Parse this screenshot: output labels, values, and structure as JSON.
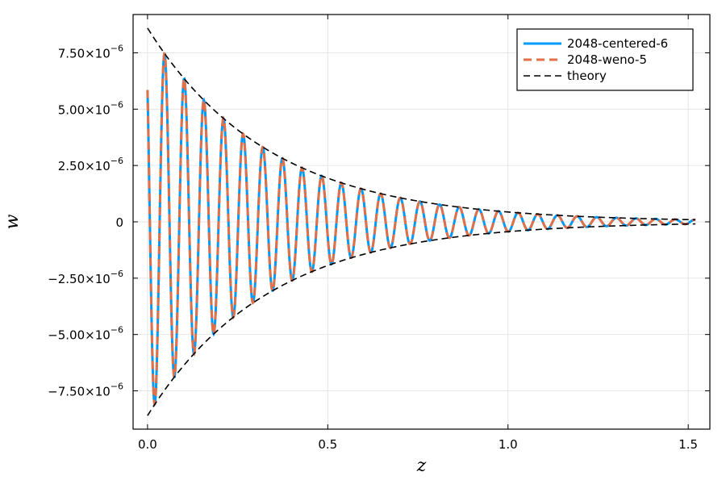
{
  "chart_data": {
    "type": "line",
    "xlabel": "z",
    "ylabel": "w",
    "xlim": [
      -0.04,
      1.56
    ],
    "ylim": [
      -9.2e-06,
      9.2e-06
    ],
    "grid": true,
    "legend_position": "top-right",
    "x_ticks": [
      {
        "value": 0.0,
        "label": "0.0"
      },
      {
        "value": 0.5,
        "label": "0.5"
      },
      {
        "value": 1.0,
        "label": "1.0"
      },
      {
        "value": 1.5,
        "label": "1.5"
      }
    ],
    "y_ticks": [
      {
        "value": 7.5e-06,
        "mant": "7.50×10",
        "exp": "−6"
      },
      {
        "value": 5e-06,
        "mant": "5.00×10",
        "exp": "−6"
      },
      {
        "value": 2.5e-06,
        "mant": "2.50×10",
        "exp": "−6"
      },
      {
        "value": 0,
        "mant": "0",
        "exp": ""
      },
      {
        "value": -2.5e-06,
        "mant": "−2.50×10",
        "exp": "−6"
      },
      {
        "value": -5e-06,
        "mant": "−5.00×10",
        "exp": "−6"
      },
      {
        "value": -7.5e-06,
        "mant": "−7.50×10",
        "exp": "−6"
      }
    ],
    "series": [
      {
        "name": "2048-centered-6",
        "color": "#009AFA",
        "style": "solid",
        "description": "decaying oscillation",
        "x_range": [
          0,
          1.52
        ],
        "amplitude_at_0": 8.6e-06,
        "decay_rate": 2.98,
        "period": 0.0545,
        "initial_value": 5.85e-06
      },
      {
        "name": "2048-weno-5",
        "color": "#E26F46",
        "style": "dashed",
        "description": "decaying oscillation",
        "x_range": [
          0,
          1.52
        ],
        "amplitude_at_0": 8.6e-06,
        "decay_rate": 2.98,
        "period": 0.0545,
        "initial_value": 5.85e-06
      },
      {
        "name": "theory",
        "color": "#000000",
        "style": "dashed",
        "description": "envelope ±A0·exp(−k·z)",
        "x_range": [
          0,
          1.52
        ],
        "amplitude_at_0": 8.6e-06,
        "decay_rate": 2.98
      }
    ]
  }
}
